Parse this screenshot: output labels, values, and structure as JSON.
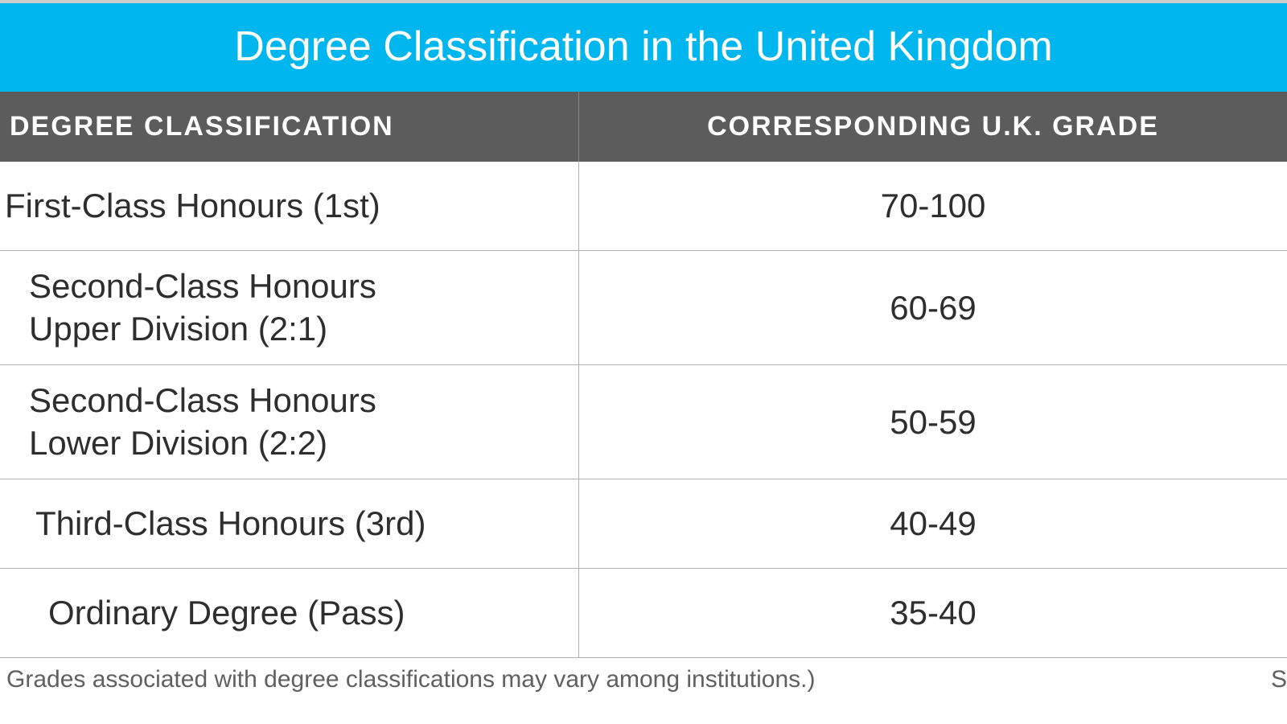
{
  "title": "Degree Classification in the United Kingdom",
  "colors": {
    "title_bg": "#00b6ef",
    "header_bg": "#5c5c5c",
    "text": "#2e2e2e",
    "border": "#b0b0b0",
    "footnote": "#606060"
  },
  "columns": {
    "left": "DEGREE CLASSIFICATION",
    "right": "CORRESPONDING U.K. GRADE"
  },
  "rows": [
    {
      "label": "First-Class Honours (1st)",
      "indent": 6,
      "grade": "70-100"
    },
    {
      "label": "Second-Class Honours\n   Upper Division (2:1)",
      "indent": 36,
      "grade": "60-69"
    },
    {
      "label": "Second-Class Honours\n   Lower Division (2:2)",
      "indent": 36,
      "grade": "50-59"
    },
    {
      "label": "Third-Class Honours (3rd)",
      "indent": 44,
      "grade": "40-49"
    },
    {
      "label": "Ordinary Degree (Pass)",
      "indent": 60,
      "grade": "35-40"
    }
  ],
  "footnote": "Grades associated with degree classifications may vary among institutions.)",
  "footnote_right": "S"
}
